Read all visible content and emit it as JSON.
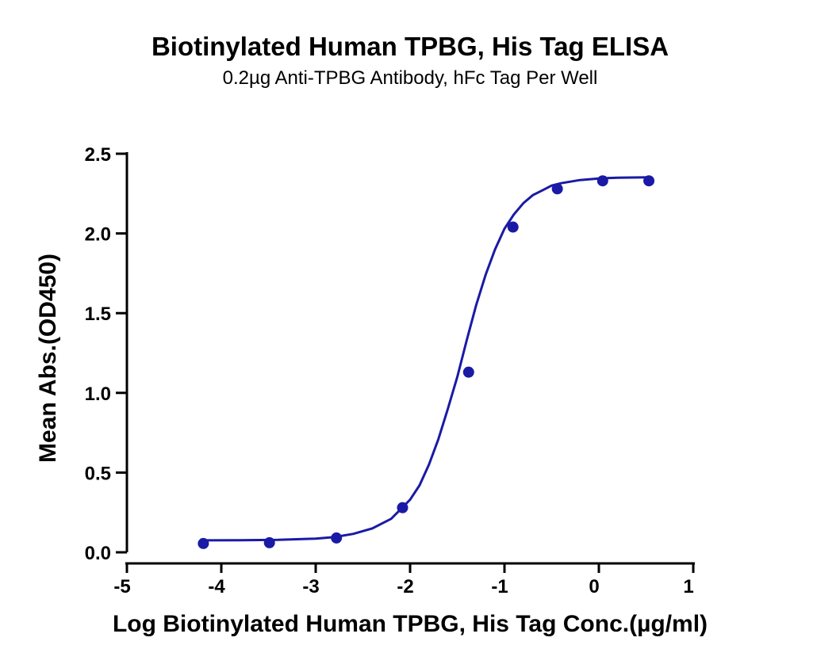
{
  "chart_data": {
    "type": "scatter",
    "title": "Biotinylated Human TPBG, His Tag ELISA",
    "subtitle": "0.2µg Anti-TPBG Antibody, hFc Tag Per Well",
    "xlabel": "Log Biotinylated Human TPBG, His Tag Conc.(µg/ml)",
    "ylabel": "Mean Abs.(OD450)",
    "xlim": [
      -5,
      1
    ],
    "ylim": [
      0,
      2.5
    ],
    "x_ticks": [
      "-5",
      "-4",
      "-3",
      "-2",
      "-1",
      "0",
      "1"
    ],
    "y_ticks": [
      "0.0",
      "0.5",
      "1.0",
      "1.5",
      "2.0",
      "2.5"
    ],
    "grid": false,
    "legend": "none",
    "color": "#1a1aa6",
    "points": {
      "x": [
        -4.19,
        -3.49,
        -2.78,
        -2.08,
        -1.38,
        -0.91,
        -0.44,
        0.04,
        0.53
      ],
      "y": [
        0.055,
        0.06,
        0.09,
        0.28,
        1.13,
        2.04,
        2.28,
        2.33,
        2.33
      ]
    },
    "fit_curve": {
      "x": [
        -4.19,
        -3.8,
        -3.4,
        -3.0,
        -2.8,
        -2.6,
        -2.4,
        -2.2,
        -2.0,
        -1.9,
        -1.8,
        -1.7,
        -1.6,
        -1.5,
        -1.4,
        -1.3,
        -1.2,
        -1.1,
        -1.0,
        -0.9,
        -0.8,
        -0.7,
        -0.6,
        -0.5,
        -0.4,
        -0.2,
        0.0,
        0.2,
        0.53
      ],
      "y": [
        0.075,
        0.076,
        0.078,
        0.086,
        0.096,
        0.116,
        0.15,
        0.21,
        0.33,
        0.42,
        0.55,
        0.71,
        0.9,
        1.1,
        1.33,
        1.55,
        1.74,
        1.9,
        2.03,
        2.12,
        2.19,
        2.24,
        2.27,
        2.3,
        2.315,
        2.335,
        2.345,
        2.35,
        2.352
      ]
    }
  }
}
